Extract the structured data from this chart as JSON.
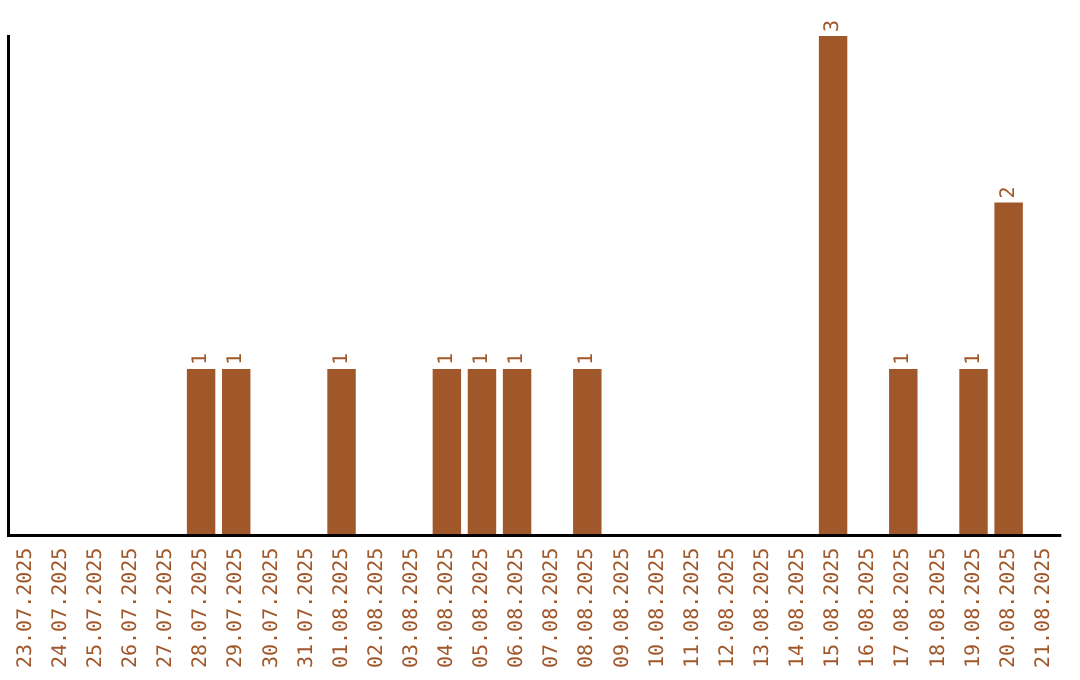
{
  "chart_data": {
    "type": "bar",
    "categories": [
      "23.07.2025",
      "24.07.2025",
      "25.07.2025",
      "26.07.2025",
      "27.07.2025",
      "28.07.2025",
      "29.07.2025",
      "30.07.2025",
      "31.07.2025",
      "01.08.2025",
      "02.08.2025",
      "03.08.2025",
      "04.08.2025",
      "05.08.2025",
      "06.08.2025",
      "07.08.2025",
      "08.08.2025",
      "09.08.2025",
      "10.08.2025",
      "11.08.2025",
      "12.08.2025",
      "13.08.2025",
      "14.08.2025",
      "15.08.2025",
      "16.08.2025",
      "17.08.2025",
      "18.08.2025",
      "19.08.2025",
      "20.08.2025",
      "21.08.2025"
    ],
    "values": [
      0,
      0,
      0,
      0,
      0,
      1,
      1,
      0,
      0,
      1,
      0,
      0,
      1,
      1,
      1,
      0,
      1,
      0,
      0,
      0,
      0,
      0,
      0,
      3,
      0,
      1,
      0,
      1,
      2,
      0
    ],
    "value_labels": [
      null,
      null,
      null,
      null,
      null,
      "1",
      "1",
      null,
      null,
      "1",
      null,
      null,
      "1",
      "1",
      "1",
      null,
      "1",
      null,
      null,
      null,
      null,
      null,
      null,
      "3",
      null,
      "1",
      null,
      "1",
      "2",
      null
    ],
    "color": "#a0572a",
    "grid": false,
    "legend": false,
    "tick_labels": "x"
  }
}
